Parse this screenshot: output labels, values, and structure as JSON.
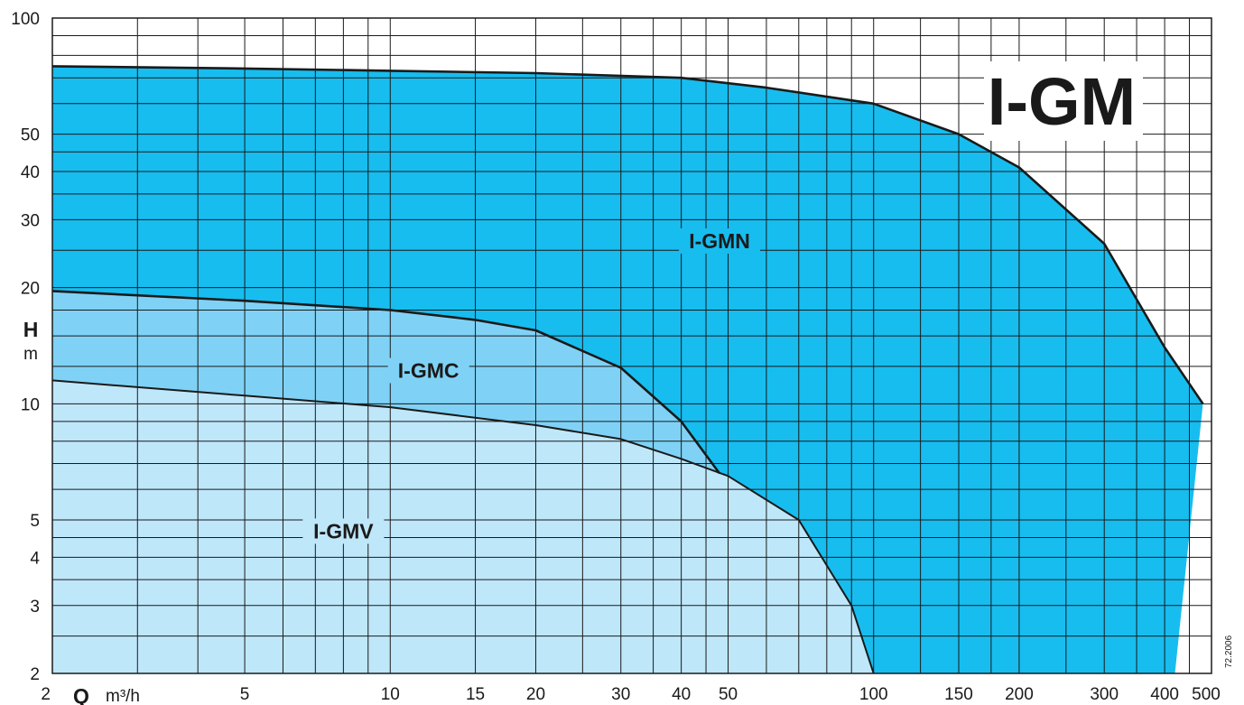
{
  "chart_data": {
    "type": "area",
    "title": "I-GM",
    "xlabel": "Q",
    "xunit": "m³/h",
    "ylabel": "H",
    "yunit": "m",
    "xscale": "log",
    "yscale": "log",
    "xlim": [
      2,
      500
    ],
    "ylim": [
      2,
      100
    ],
    "x_ticks": [
      2,
      5,
      10,
      15,
      20,
      30,
      40,
      50,
      100,
      150,
      200,
      300,
      400,
      500
    ],
    "y_ticks": [
      2,
      3,
      4,
      5,
      10,
      20,
      30,
      40,
      50,
      100
    ],
    "grid": true,
    "code": "72.2006",
    "colors": {
      "I-GMN": "#17bdef",
      "I-GMC": "#7fd2f5",
      "I-GMV": "#bfe7fa",
      "outline": "#1a1a1a",
      "grid": "#1a1a1a"
    },
    "series": [
      {
        "name": "I-GMN",
        "label_at": [
          48,
          26
        ],
        "boundary": [
          [
            2,
            75
          ],
          [
            5,
            74
          ],
          [
            10,
            73
          ],
          [
            20,
            72
          ],
          [
            40,
            70
          ],
          [
            60,
            66
          ],
          [
            100,
            60
          ],
          [
            150,
            50
          ],
          [
            200,
            41
          ],
          [
            300,
            26
          ],
          [
            400,
            14
          ],
          [
            480,
            10
          ],
          [
            420,
            2
          ],
          [
            100,
            2
          ],
          [
            2,
            2
          ]
        ]
      },
      {
        "name": "I-GMC",
        "label_at": [
          12,
          12
        ],
        "boundary": [
          [
            2,
            19.6
          ],
          [
            5,
            18.5
          ],
          [
            10,
            17.5
          ],
          [
            15,
            16.5
          ],
          [
            20,
            15.5
          ],
          [
            30,
            12.4
          ],
          [
            40,
            9
          ],
          [
            48,
            6.6
          ],
          [
            40,
            7.2
          ],
          [
            30,
            8.1
          ],
          [
            20,
            8.8
          ],
          [
            10,
            9.8
          ],
          [
            5,
            10.5
          ],
          [
            2,
            11.5
          ]
        ]
      },
      {
        "name": "I-GMV",
        "label_at": [
          8,
          4.6
        ],
        "boundary": [
          [
            2,
            11.5
          ],
          [
            5,
            10.5
          ],
          [
            10,
            9.8
          ],
          [
            20,
            8.8
          ],
          [
            30,
            8.1
          ],
          [
            40,
            7.2
          ],
          [
            50,
            6.5
          ],
          [
            70,
            5
          ],
          [
            90,
            3
          ],
          [
            100,
            2
          ],
          [
            2,
            2
          ]
        ]
      }
    ]
  }
}
